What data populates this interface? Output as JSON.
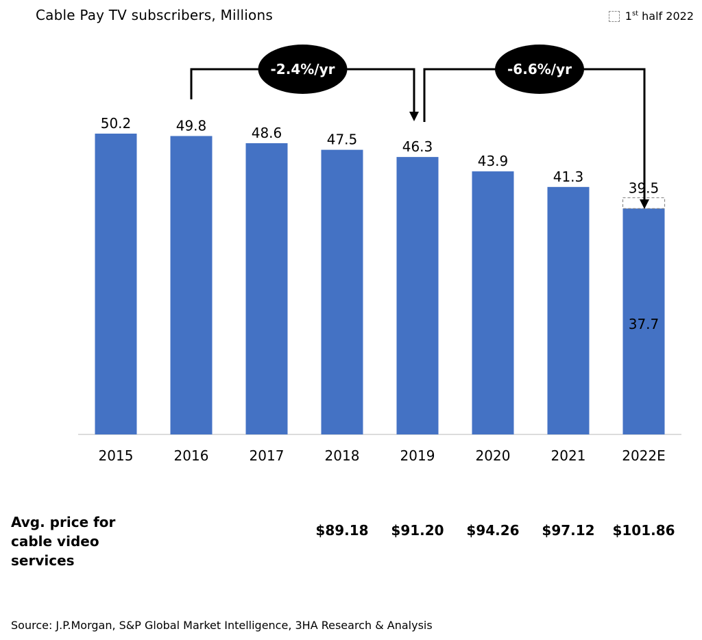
{
  "title": "Cable Pay TV subscribers, Millions",
  "legend": {
    "prefix": "1",
    "sup": "st",
    "suffix": " half 2022"
  },
  "chart_data": {
    "type": "bar",
    "title": "Cable Pay TV subscribers, Millions",
    "categories": [
      "2015",
      "2016",
      "2017",
      "2018",
      "2019",
      "2020",
      "2021",
      "2022E"
    ],
    "series": [
      {
        "values": [
          50.2,
          49.8,
          48.6,
          47.5,
          46.3,
          43.9,
          41.3,
          37.7
        ]
      }
    ],
    "data_labels": [
      "50.2",
      "49.8",
      "48.6",
      "47.5",
      "46.3",
      "43.9",
      "41.3",
      "37.7"
    ],
    "half_year_2022": {
      "label": "1st half 2022",
      "value": 39.5,
      "label_text": "39.5"
    },
    "ylim": [
      0,
      50.2
    ],
    "grid": false,
    "legend_position": "top-right",
    "annotations": [
      {
        "label": "-2.4%/yr",
        "from": "2016",
        "to": "2019"
      },
      {
        "label": "-6.6%/yr",
        "from": "2019",
        "to": "2022E"
      }
    ],
    "bar_color": "#4472C4"
  },
  "prices": {
    "label_line1": "Avg. price for",
    "label_line2": "cable video",
    "label_line3": "services",
    "items": [
      {
        "year": "2018",
        "value": "$89.18"
      },
      {
        "year": "2019",
        "value": "$91.20"
      },
      {
        "year": "2020",
        "value": "$94.26"
      },
      {
        "year": "2021",
        "value": "$97.12"
      },
      {
        "year": "2022E",
        "value": "$101.86"
      }
    ]
  },
  "source": "Source: J.P.Morgan, S&P Global Market Intelligence, 3HA Research & Analysis"
}
